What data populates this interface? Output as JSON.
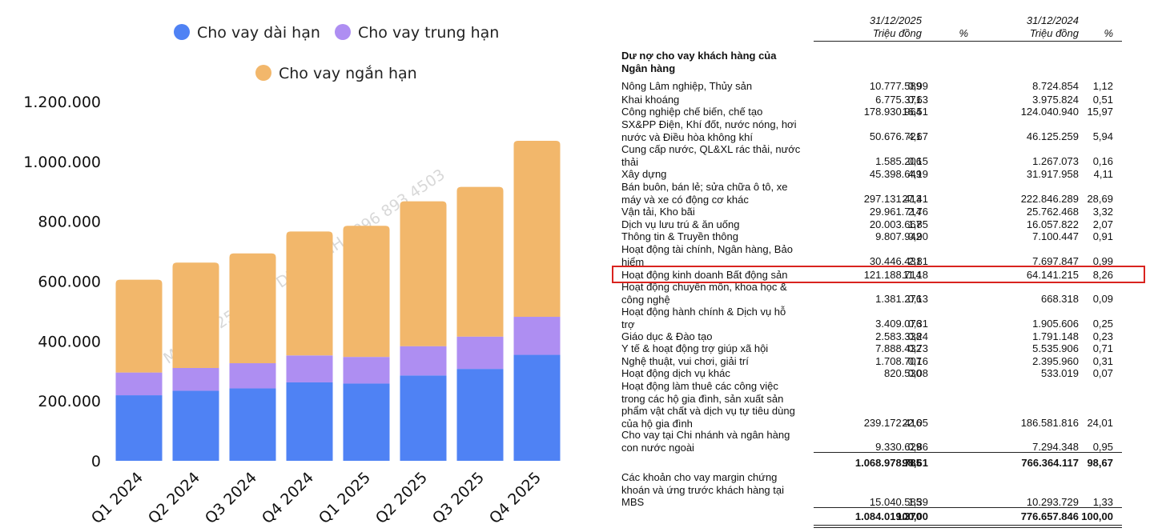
{
  "chart_data": {
    "type": "bar",
    "stacked": true,
    "categories": [
      "Q1 2024",
      "Q2 2024",
      "Q3 2024",
      "Q4 2024",
      "Q1 2025",
      "Q2 2025",
      "Q3 2025",
      "Q4 2025"
    ],
    "series": [
      {
        "name": "Cho vay dài hạn",
        "color": "#4f82f4",
        "values": [
          219000,
          234000,
          242000,
          262000,
          258000,
          285000,
          307000,
          354000
        ]
      },
      {
        "name": "Cho vay trung hạn",
        "color": "#ae8ef2",
        "values": [
          76000,
          76000,
          84000,
          90000,
          89000,
          98000,
          108000,
          127000
        ]
      },
      {
        "name": "Cho vay ngắn hạn",
        "color": "#f2b76b",
        "values": [
          310000,
          352000,
          367000,
          414000,
          438000,
          484000,
          500000,
          588000
        ]
      }
    ],
    "yticks": [
      "0",
      "200.000",
      "400.000",
      "600.000",
      "800.000",
      "1.000.000",
      "1.200.000"
    ],
    "ylim": [
      0,
      1200000
    ],
    "legend_position": "top",
    "grid": false,
    "watermark": "ID MBS: B225 - ĐÀO DIỆU LINH - 096 893 4503"
  },
  "table": {
    "headers": {
      "date1": "31/12/2025",
      "unit1": "Triệu đồng",
      "pct1": "%",
      "date2": "31/12/2024",
      "unit2": "Triệu đồng",
      "pct2": "%"
    },
    "section_title": "Dư nợ cho vay khách hàng của Ngân hàng",
    "rows": [
      {
        "label": "Nông Lâm nghiệp, Thủy sản",
        "v1": "10.777.589",
        "p1": "0,99",
        "v2": "8.724.854",
        "p2": "1,12"
      },
      {
        "label": "Khai khoáng",
        "v1": "6.775.371",
        "p1": "0,63",
        "v2": "3.975.824",
        "p2": "0,51"
      },
      {
        "label": "Công nghiệp chế biến, chế tạo",
        "v1": "178.930.964",
        "p1": "16,51",
        "v2": "124.040.940",
        "p2": "15,97"
      },
      {
        "label": "SX&PP Điện, Khí đốt, nước nóng, hơi nước và Điều hòa không khí",
        "v1": "50.676.721",
        "p1": "4,67",
        "v2": "46.125.259",
        "p2": "5,94"
      },
      {
        "label": "Cung cấp nước, QL&XL rác thải, nước thải",
        "v1": "1.585.206",
        "p1": "0,15",
        "v2": "1.267.073",
        "p2": "0,16"
      },
      {
        "label": "Xây dựng",
        "v1": "45.398.649",
        "p1": "4,19",
        "v2": "31.917.958",
        "p2": "4,11"
      },
      {
        "label": "Bán buôn, bán lẻ; sửa chữa ô tô, xe máy và xe có động cơ khác",
        "v1": "297.131.413",
        "p1": "27,41",
        "v2": "222.846.289",
        "p2": "28,69"
      },
      {
        "label": "Vận tải, Kho bãi",
        "v1": "29.961.714",
        "p1": "2,76",
        "v2": "25.762.468",
        "p2": "3,32"
      },
      {
        "label": "Dịch vụ lưu trú & ăn uống",
        "v1": "20.003.667",
        "p1": "1,85",
        "v2": "16.057.822",
        "p2": "2,07"
      },
      {
        "label": "Thông tin & Truyền thông",
        "v1": "9.807.942",
        "p1": "0,90",
        "v2": "7.100.447",
        "p2": "0,91"
      },
      {
        "label": "Hoạt động tài chính, Ngân hàng, Bảo hiểm",
        "v1": "30.446.431",
        "p1": "2,81",
        "v2": "7.697.847",
        "p2": "0,99"
      },
      {
        "label": "Hoạt động kinh doanh Bất động sản",
        "v1": "121.188.714",
        "p1": "11,18",
        "v2": "64.141.215",
        "p2": "8,26"
      },
      {
        "label": "Hoạt động chuyên môn, khoa học & công nghệ",
        "v1": "1.381.276",
        "p1": "0,13",
        "v2": "668.318",
        "p2": "0,09"
      },
      {
        "label": "Hoạt động hành chính & Dịch vụ hỗ trợ",
        "v1": "3.409.076",
        "p1": "0,31",
        "v2": "1.905.606",
        "p2": "0,25"
      },
      {
        "label": "Giáo dục & Đào tạo",
        "v1": "2.583.338",
        "p1": "0,24",
        "v2": "1.791.148",
        "p2": "0,23"
      },
      {
        "label": "Y tế & hoạt động trợ giúp xã hội",
        "v1": "7.888.432",
        "p1": "0,73",
        "v2": "5.535.906",
        "p2": "0,71"
      },
      {
        "label": "Nghệ thuật, vui chơi, giải trí",
        "v1": "1.708.707",
        "p1": "0,16",
        "v2": "2.395.960",
        "p2": "0,31"
      },
      {
        "label": "Hoạt động dịch vụ khác",
        "v1": "820.530",
        "p1": "0,08",
        "v2": "533.019",
        "p2": "0,07"
      },
      {
        "label": "Hoạt động làm thuê các công việc trong các hộ gia đình, sản xuất sản phẩm vật chất và dịch vụ tự tiêu dùng của hộ gia đình",
        "v1": "239.172.416",
        "p1": "22,05",
        "v2": "186.581.816",
        "p2": "24,01"
      },
      {
        "label": "Cho vay tại Chi nhánh và ngân hàng con nước ngoài",
        "v1": "9.330.629",
        "p1": "0,86",
        "v2": "7.294.348",
        "p2": "0,95"
      }
    ],
    "subtotal": {
      "v1": "1.068.978.785",
      "p1": "98,61",
      "v2": "766.364.117",
      "p2": "98,67"
    },
    "margin_row": {
      "label": "Các khoản cho vay margin chứng khoán và ứng trước khách hàng tại MBS",
      "v1": "15.040.585",
      "p1": "1,39",
      "v2": "10.293.729",
      "p2": "1,33"
    },
    "total": {
      "v1": "1.084.019.370",
      "p1": "100,00",
      "v2": "776.657.846",
      "p2": "100,00"
    },
    "highlighted_row": "Hoạt động kinh doanh Bất động sản"
  }
}
